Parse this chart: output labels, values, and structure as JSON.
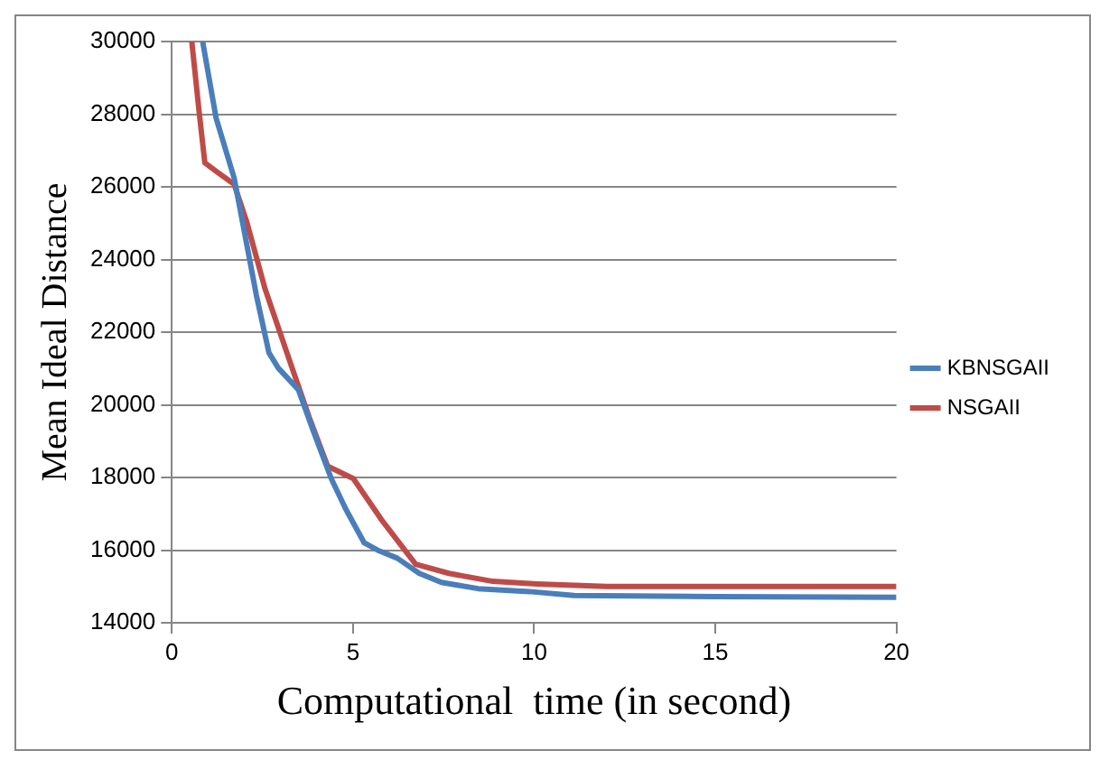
{
  "chart_data": {
    "type": "line",
    "xlabel": "Computational  time (in second)",
    "ylabel": "Mean Ideal Distance",
    "xlim": [
      0,
      20
    ],
    "xticks": [
      0,
      5,
      10,
      15,
      20
    ],
    "ylim": [
      14000,
      30000
    ],
    "yticks": [
      14000,
      16000,
      18000,
      20000,
      22000,
      24000,
      26000,
      28000,
      30000
    ],
    "grid": "y",
    "legend": "right",
    "marker": "none",
    "line_style": "solid",
    "series": [
      {
        "name": "KBNSGAII",
        "color": "#4a7ebb",
        "x": [
          0.85,
          1.22,
          1.72,
          1.96,
          2.33,
          2.68,
          2.94,
          3.49,
          3.89,
          4.4,
          4.8,
          5.31,
          5.72,
          6.22,
          6.83,
          7.44,
          8.45,
          9.87,
          11.1,
          15,
          20
        ],
        "values": [
          30000,
          27900,
          26240,
          24980,
          23030,
          21430,
          21010,
          20420,
          19320,
          17970,
          17130,
          16200,
          15980,
          15780,
          15360,
          15110,
          14940,
          14860,
          14750,
          14720,
          14700
        ]
      },
      {
        "name": "NSGAII",
        "color": "#be4b48",
        "x": [
          0.55,
          0.75,
          0.91,
          1.26,
          1.72,
          2.06,
          2.57,
          3.38,
          3.79,
          4.3,
          5.01,
          5.82,
          6.73,
          7.65,
          8.86,
          10.08,
          12,
          20
        ],
        "values": [
          30000,
          28090,
          26660,
          26400,
          26070,
          25060,
          23200,
          20840,
          19660,
          18310,
          17970,
          16790,
          15610,
          15360,
          15140,
          15070,
          15000,
          15000
        ]
      }
    ]
  }
}
